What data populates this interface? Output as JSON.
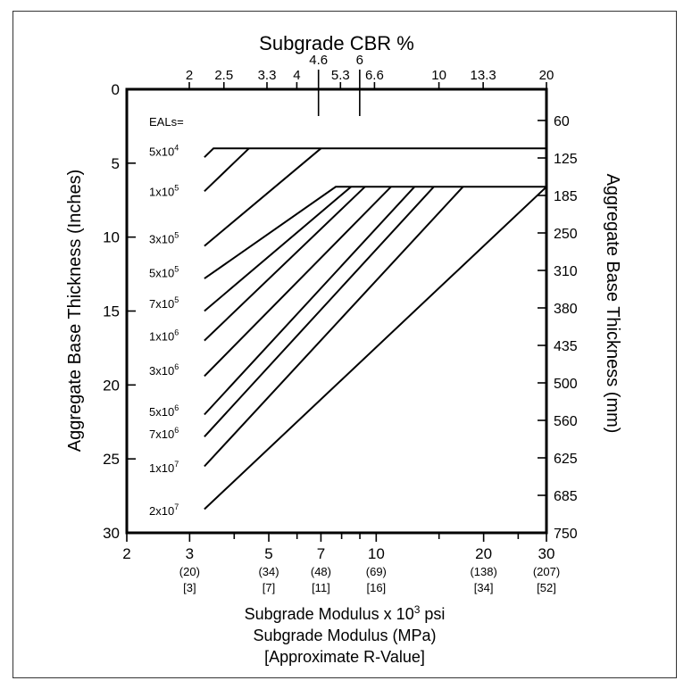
{
  "chart_data": {
    "type": "line",
    "top_axis": {
      "label": "Subgrade CBR %",
      "ticks": [
        {
          "value": 2,
          "text": "2"
        },
        {
          "value": 2.5,
          "text": "2.5"
        },
        {
          "value": 3.3,
          "text": "3.3"
        },
        {
          "value": 4,
          "text": "4"
        },
        {
          "value": 4.6,
          "text": "4.6"
        },
        {
          "value": 5.3,
          "text": "5.3"
        },
        {
          "value": 6,
          "text": "6"
        },
        {
          "value": 6.6,
          "text": "6.6"
        },
        {
          "value": 10,
          "text": "10"
        },
        {
          "value": 13.3,
          "text": "13.3"
        },
        {
          "value": 20,
          "text": "20"
        }
      ]
    },
    "bottom_axis": {
      "label_line1": "Subgrade Modulus x 10",
      "label_sup": "3",
      "label_line1_end": " psi",
      "label_line2": "Subgrade Modulus (MPa)",
      "label_line3": "[Approximate R-Value]",
      "scale": "log",
      "range": [
        2,
        30
      ],
      "ticks": [
        {
          "value": 2,
          "text": "2",
          "mpa": "",
          "r": ""
        },
        {
          "value": 3,
          "text": "3",
          "mpa": "(20)",
          "r": "[3]"
        },
        {
          "value": 5,
          "text": "5",
          "mpa": "(34)",
          "r": "[7]"
        },
        {
          "value": 7,
          "text": "7",
          "mpa": "(48)",
          "r": "[11]"
        },
        {
          "value": 10,
          "text": "10",
          "mpa": "(69)",
          "r": "[16]"
        },
        {
          "value": 20,
          "text": "20",
          "mpa": "(138)",
          "r": "[34]"
        },
        {
          "value": 30,
          "text": "30",
          "mpa": "(207)",
          "r": "[52]"
        }
      ],
      "minor_ticks": [
        4,
        6,
        8,
        9,
        15,
        25
      ]
    },
    "left_axis": {
      "label": "Aggregate Base Thickness (Inches)",
      "range": [
        0,
        30
      ],
      "ticks": [
        0,
        5,
        10,
        15,
        20,
        25,
        30
      ]
    },
    "right_axis": {
      "label": "Aggregate Base Thickness (mm)",
      "ticks": [
        "60",
        "125",
        "185",
        "250",
        "310",
        "380",
        "435",
        "500",
        "560",
        "625",
        "685",
        "750"
      ]
    },
    "eals_header": "EALs=",
    "series": [
      {
        "name_base": "5x10",
        "exp": "4",
        "label_y": 4.2,
        "points": [
          [
            3.3,
            4.6
          ],
          [
            3.5,
            4.0
          ],
          [
            30,
            4.0
          ]
        ]
      },
      {
        "name_base": "1x10",
        "exp": "5",
        "label_y": 6.9,
        "points": [
          [
            3.3,
            6.9
          ],
          [
            4.4,
            4.0
          ]
        ]
      },
      {
        "name_base": "3x10",
        "exp": "5",
        "label_y": 10.1,
        "points": [
          [
            3.3,
            10.6
          ],
          [
            7.0,
            4.0
          ]
        ]
      },
      {
        "name_base": "5x10",
        "exp": "5",
        "label_y": 12.4,
        "points": [
          [
            3.3,
            12.8
          ],
          [
            7.7,
            6.6
          ],
          [
            30,
            6.6
          ]
        ]
      },
      {
        "name_base": "7x10",
        "exp": "5",
        "label_y": 14.5,
        "points": [
          [
            3.3,
            15.0
          ],
          [
            8.5,
            6.6
          ]
        ]
      },
      {
        "name_base": "1x10",
        "exp": "6",
        "label_y": 16.7,
        "points": [
          [
            3.3,
            17.0
          ],
          [
            9.3,
            6.6
          ]
        ]
      },
      {
        "name_base": "3x10",
        "exp": "6",
        "label_y": 19.0,
        "points": [
          [
            3.3,
            19.4
          ],
          [
            11.0,
            6.6
          ]
        ]
      },
      {
        "name_base": "5x10",
        "exp": "6",
        "label_y": 21.8,
        "points": [
          [
            3.3,
            22.0
          ],
          [
            12.8,
            6.6
          ]
        ]
      },
      {
        "name_base": "7x10",
        "exp": "6",
        "label_y": 23.3,
        "points": [
          [
            3.3,
            23.5
          ],
          [
            14.5,
            6.6
          ]
        ]
      },
      {
        "name_base": "1x10",
        "exp": "7",
        "label_y": 25.6,
        "points": [
          [
            3.3,
            25.5
          ],
          [
            17.5,
            6.6
          ]
        ]
      },
      {
        "name_base": "2x10",
        "exp": "7",
        "label_y": 28.5,
        "points": [
          [
            3.3,
            28.4
          ],
          [
            30,
            6.6
          ]
        ]
      }
    ]
  }
}
